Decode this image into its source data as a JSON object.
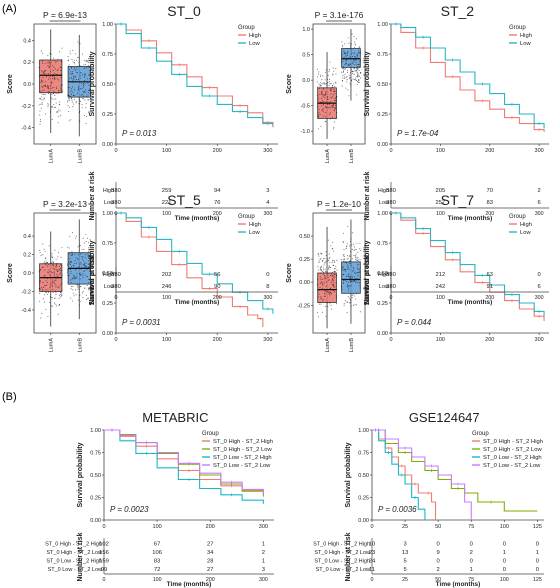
{
  "panel_labels": [
    "(A)",
    "(B)"
  ],
  "colors": {
    "high": "#f07c72",
    "low": "#2bb6c4",
    "box_lumA": "#e8736b",
    "box_lumB": "#5b9bd5",
    "st0h_st2h": "#f07c72",
    "st0h_st2l": "#7fae00",
    "st0l_st2h": "#19b9c9",
    "st0l_st2l": "#c77cff"
  },
  "chart_data": [
    {
      "type": "box",
      "id": "box_st0",
      "pvalue": "P = 6.9e-13",
      "ylabel": "Score",
      "categories": [
        "LumA",
        "LumB"
      ],
      "ylim": [
        -0.55,
        0.55
      ],
      "yticks": [
        -0.4,
        -0.2,
        0.0,
        0.2,
        0.4
      ],
      "ytick_labels": [
        "-0.4",
        "-0.2",
        "0.0",
        "0.2",
        "0.4"
      ],
      "boxes": [
        {
          "q1": -0.08,
          "median": 0.08,
          "q3": 0.22,
          "lo": -0.45,
          "hi": 0.5
        },
        {
          "q1": -0.12,
          "median": 0.02,
          "q3": 0.16,
          "lo": -0.48,
          "hi": 0.45
        }
      ]
    },
    {
      "type": "line",
      "id": "km_st0",
      "title": "ST_0",
      "ylabel": "Survival probability",
      "xlabel": "Time (months)",
      "legend_title": "Group",
      "pvalue": "P = 0.013",
      "xlim": [
        0,
        320
      ],
      "ylim": [
        0,
        1
      ],
      "xticks": [
        0,
        100,
        200,
        300
      ],
      "yticks": [
        0,
        0.25,
        0.5,
        0.75,
        1.0
      ],
      "ytick_labels": [
        "0.00",
        "0.25",
        "0.50",
        "0.75",
        "1.00"
      ],
      "series": [
        {
          "name": "High",
          "x": [
            0,
            20,
            50,
            80,
            110,
            140,
            170,
            200,
            230,
            260,
            290,
            310
          ],
          "y": [
            1.0,
            0.95,
            0.86,
            0.76,
            0.66,
            0.56,
            0.47,
            0.4,
            0.32,
            0.26,
            0.18,
            0.14
          ]
        },
        {
          "name": "Low",
          "x": [
            0,
            20,
            50,
            80,
            110,
            140,
            170,
            200,
            230,
            260,
            290,
            310
          ],
          "y": [
            1.0,
            0.92,
            0.8,
            0.69,
            0.58,
            0.48,
            0.4,
            0.33,
            0.27,
            0.22,
            0.17,
            0.15
          ]
        }
      ],
      "risk_table": {
        "label": "Number at risk",
        "rows": [
          {
            "name": "High",
            "values": [
              "380",
              "259",
              "94",
              "3"
            ]
          },
          {
            "name": "Low",
            "values": [
              "380",
              "221",
              "76",
              "4"
            ]
          }
        ]
      }
    },
    {
      "type": "box",
      "id": "box_st2",
      "pvalue": "P = 3.1e-176",
      "ylabel": "Score",
      "categories": [
        "LumA",
        "LumB"
      ],
      "ylim": [
        -1.25,
        1.1
      ],
      "yticks": [
        -1.0,
        -0.5,
        0.0,
        0.5,
        1.0
      ],
      "ytick_labels": [
        "-1.0",
        "-0.5",
        "0.0",
        "0.5",
        "1.0"
      ],
      "boxes": [
        {
          "q1": -0.75,
          "median": -0.45,
          "q3": -0.15,
          "lo": -1.15,
          "hi": 0.55
        },
        {
          "q1": 0.25,
          "median": 0.42,
          "q3": 0.62,
          "lo": -0.4,
          "hi": 1.0
        }
      ]
    },
    {
      "type": "line",
      "id": "km_st2",
      "title": "ST_2",
      "ylabel": "Survival probability",
      "xlabel": "Time (months)",
      "legend_title": "Group",
      "pvalue": "P = 1.7e-04",
      "xlim": [
        0,
        320
      ],
      "ylim": [
        0,
        1
      ],
      "xticks": [
        0,
        100,
        200,
        300
      ],
      "yticks": [
        0,
        0.25,
        0.5,
        0.75,
        1.0
      ],
      "ytick_labels": [
        "0.00",
        "0.25",
        "0.50",
        "0.75",
        "1.00"
      ],
      "series": [
        {
          "name": "High",
          "x": [
            0,
            20,
            50,
            80,
            110,
            140,
            170,
            200,
            230,
            260,
            290,
            310
          ],
          "y": [
            1.0,
            0.93,
            0.8,
            0.68,
            0.56,
            0.45,
            0.36,
            0.29,
            0.22,
            0.17,
            0.12,
            0.1
          ]
        },
        {
          "name": "Low",
          "x": [
            0,
            20,
            50,
            80,
            110,
            140,
            170,
            200,
            230,
            260,
            290,
            310
          ],
          "y": [
            1.0,
            0.97,
            0.89,
            0.8,
            0.7,
            0.6,
            0.5,
            0.42,
            0.33,
            0.25,
            0.17,
            0.13
          ]
        }
      ],
      "risk_table": {
        "label": "Number at risk",
        "rows": [
          {
            "name": "High",
            "values": [
              "380",
              "205",
              "70",
              "2"
            ]
          },
          {
            "name": "Low",
            "values": [
              "380",
              "257",
              "83",
              "6"
            ]
          }
        ]
      }
    },
    {
      "type": "box",
      "id": "box_st5",
      "pvalue": "P = 3.2e-13",
      "ylabel": "Score",
      "categories": [
        "LumA",
        "LumB"
      ],
      "ylim": [
        -0.65,
        0.65
      ],
      "yticks": [
        -0.4,
        -0.2,
        0.0,
        0.2,
        0.4
      ],
      "ytick_labels": [
        "-0.4",
        "-0.2",
        "0.0",
        "0.2",
        "0.4"
      ],
      "boxes": [
        {
          "q1": -0.2,
          "median": -0.05,
          "q3": 0.1,
          "lo": -0.58,
          "hi": 0.45
        },
        {
          "q1": -0.12,
          "median": 0.05,
          "q3": 0.22,
          "lo": -0.5,
          "hi": 0.58
        }
      ]
    },
    {
      "type": "line",
      "id": "km_st5",
      "title": "ST_5",
      "ylabel": "Survival probability",
      "xlabel": "Time (months)",
      "legend_title": "Group",
      "pvalue": "P = 0.0031",
      "xlim": [
        0,
        320
      ],
      "ylim": [
        0,
        1
      ],
      "xticks": [
        0,
        100,
        200,
        300
      ],
      "yticks": [
        0,
        0.25,
        0.5,
        0.75,
        1.0
      ],
      "ytick_labels": [
        "0.00",
        "0.25",
        "0.50",
        "0.75",
        "1.00"
      ],
      "series": [
        {
          "name": "High",
          "x": [
            0,
            20,
            50,
            80,
            110,
            140,
            170,
            200,
            230,
            260,
            280,
            290
          ],
          "y": [
            1.0,
            0.93,
            0.8,
            0.68,
            0.57,
            0.46,
            0.37,
            0.3,
            0.22,
            0.15,
            0.12,
            0.05
          ]
        },
        {
          "name": "Low",
          "x": [
            0,
            20,
            50,
            80,
            110,
            140,
            170,
            200,
            230,
            260,
            290,
            310
          ],
          "y": [
            1.0,
            0.96,
            0.88,
            0.78,
            0.68,
            0.58,
            0.49,
            0.41,
            0.34,
            0.27,
            0.2,
            0.16
          ]
        }
      ],
      "risk_table": {
        "label": "Number at risk",
        "rows": [
          {
            "name": "High",
            "values": [
              "380",
              "202",
              "56",
              "0"
            ]
          },
          {
            "name": "Low",
            "values": [
              "380",
              "246",
              "90",
              "8"
            ]
          }
        ]
      }
    },
    {
      "type": "box",
      "id": "box_st7",
      "pvalue": "P = 1.2e-10",
      "ylabel": "Score",
      "categories": [
        "LumA",
        "LumB"
      ],
      "ylim": [
        -0.55,
        0.75
      ],
      "yticks": [
        -0.25,
        0.0,
        0.25,
        0.5
      ],
      "ytick_labels": [
        "-0.25",
        "0.00",
        "0.25",
        "0.50"
      ],
      "boxes": [
        {
          "q1": -0.22,
          "median": -0.08,
          "q3": 0.1,
          "lo": -0.5,
          "hi": 0.6
        },
        {
          "q1": -0.12,
          "median": 0.03,
          "q3": 0.22,
          "lo": -0.45,
          "hi": 0.68
        }
      ]
    },
    {
      "type": "line",
      "id": "km_st7",
      "title": "ST_7",
      "ylabel": "Survival probability",
      "xlabel": "Time (months)",
      "legend_title": "Group",
      "pvalue": "P = 0.044",
      "xlim": [
        0,
        320
      ],
      "ylim": [
        0,
        1
      ],
      "xticks": [
        0,
        100,
        200,
        300
      ],
      "yticks": [
        0,
        0.25,
        0.5,
        0.75,
        1.0
      ],
      "ytick_labels": [
        "0.00",
        "0.25",
        "0.50",
        "0.75",
        "1.00"
      ],
      "series": [
        {
          "name": "High",
          "x": [
            0,
            20,
            50,
            80,
            110,
            140,
            170,
            200,
            230,
            260,
            290,
            310
          ],
          "y": [
            1.0,
            0.94,
            0.83,
            0.72,
            0.61,
            0.51,
            0.42,
            0.34,
            0.27,
            0.2,
            0.14,
            0.1
          ]
        },
        {
          "name": "Low",
          "x": [
            0,
            20,
            50,
            80,
            110,
            140,
            170,
            200,
            230,
            260,
            290,
            310
          ],
          "y": [
            1.0,
            0.96,
            0.87,
            0.77,
            0.67,
            0.57,
            0.48,
            0.4,
            0.32,
            0.25,
            0.18,
            0.14
          ]
        }
      ],
      "risk_table": {
        "label": "Number at risk",
        "rows": [
          {
            "name": "High",
            "values": [
              "380",
              "212",
              "63",
              "0"
            ]
          },
          {
            "name": "Low",
            "values": [
              "380",
              "242",
              "91",
              "6"
            ]
          }
        ]
      }
    },
    {
      "type": "line",
      "id": "km_metabric",
      "title": "METABRIC",
      "ylabel": "Survival probability",
      "xlabel": "Time (months)",
      "legend_title": "Group",
      "pvalue": "P = 0.0023",
      "xlim": [
        0,
        320
      ],
      "ylim": [
        0,
        1
      ],
      "xticks": [
        0,
        100,
        200,
        300
      ],
      "yticks": [
        0,
        0.25,
        0.5,
        0.75,
        1.0
      ],
      "ytick_labels": [
        "0.00",
        "0.25",
        "0.50",
        "0.75",
        "1.00"
      ],
      "series": [
        {
          "name": "ST_0 High - ST_2 High",
          "x": [
            0,
            30,
            60,
            100,
            140,
            180,
            220,
            260,
            300
          ],
          "y": [
            1.0,
            0.93,
            0.82,
            0.68,
            0.55,
            0.45,
            0.38,
            0.33,
            0.3
          ]
        },
        {
          "name": "ST_0 High - ST_2 Low",
          "x": [
            0,
            30,
            60,
            100,
            140,
            180,
            220,
            260,
            300
          ],
          "y": [
            1.0,
            0.95,
            0.86,
            0.74,
            0.62,
            0.5,
            0.4,
            0.32,
            0.26
          ]
        },
        {
          "name": "ST_0 Low - ST_2 High",
          "x": [
            0,
            30,
            60,
            100,
            140,
            180,
            220,
            260,
            300
          ],
          "y": [
            1.0,
            0.88,
            0.74,
            0.58,
            0.45,
            0.35,
            0.28,
            0.22,
            0.18
          ]
        },
        {
          "name": "ST_0 Low - ST_2 Low",
          "x": [
            0,
            30,
            60,
            100,
            140,
            180,
            220,
            260,
            300
          ],
          "y": [
            1.0,
            0.94,
            0.86,
            0.75,
            0.63,
            0.52,
            0.42,
            0.34,
            0.28
          ]
        }
      ],
      "risk_table": {
        "label": "Number at risk",
        "rows": [
          {
            "name": "ST_0 High - ST_2 High",
            "values": [
              "102",
              "67",
              "27",
              "1"
            ]
          },
          {
            "name": "ST_0 High - ST_2 Low",
            "values": [
              "156",
              "106",
              "34",
              "2"
            ]
          },
          {
            "name": "ST_0 Low - ST_2 High",
            "values": [
              "159",
              "83",
              "28",
              "1"
            ]
          },
          {
            "name": "ST_0 Low - ST_2 Low",
            "values": [
              "99",
              "72",
              "27",
              "3"
            ]
          }
        ]
      }
    },
    {
      "type": "line",
      "id": "km_gse",
      "title": "GSE124647",
      "ylabel": "Survival probability",
      "xlabel": "Time (months)",
      "legend_title": "Group",
      "pvalue": "P = 0.0036",
      "xlim": [
        0,
        130
      ],
      "ylim": [
        0,
        1
      ],
      "xticks": [
        0,
        25,
        50,
        75,
        100,
        125
      ],
      "yticks": [
        0,
        0.25,
        0.5,
        0.75,
        1.0
      ],
      "ytick_labels": [
        "0.00",
        "0.25",
        "0.50",
        "0.75",
        "1.00"
      ],
      "series": [
        {
          "name": "ST_0 High - ST_2 High",
          "x": [
            0,
            5,
            10,
            15,
            20,
            25,
            30,
            35,
            40,
            45,
            48
          ],
          "y": [
            1.0,
            0.9,
            0.8,
            0.7,
            0.6,
            0.5,
            0.4,
            0.3,
            0.3,
            0.2,
            0.0
          ]
        },
        {
          "name": "ST_0 High - ST_2 Low",
          "x": [
            0,
            10,
            20,
            30,
            40,
            50,
            60,
            70,
            80,
            100,
            125
          ],
          "y": [
            1.0,
            0.85,
            0.75,
            0.65,
            0.55,
            0.45,
            0.35,
            0.3,
            0.2,
            0.1,
            0.1
          ]
        },
        {
          "name": "ST_0 Low - ST_2 High",
          "x": [
            0,
            5,
            10,
            15,
            20,
            25,
            30,
            35,
            40
          ],
          "y": [
            1.0,
            0.88,
            0.75,
            0.62,
            0.5,
            0.4,
            0.25,
            0.12,
            0.0
          ]
        },
        {
          "name": "ST_0 Low - ST_2 Low",
          "x": [
            0,
            10,
            20,
            30,
            40,
            50,
            60,
            70,
            75
          ],
          "y": [
            1.0,
            0.9,
            0.8,
            0.7,
            0.6,
            0.5,
            0.4,
            0.2,
            0.0
          ]
        }
      ],
      "risk_table": {
        "label": "Number at risk",
        "rows": [
          {
            "name": "ST_0 High - ST_2 High",
            "values": [
              "10",
              "3",
              "0",
              "0",
              "0",
              "0"
            ]
          },
          {
            "name": "ST_0 High - ST_2 Low",
            "values": [
              "23",
              "13",
              "9",
              "2",
              "1",
              "1"
            ]
          },
          {
            "name": "ST_0 Low - ST_2 High",
            "values": [
              "24",
              "5",
              "0",
              "0",
              "0",
              "0"
            ]
          },
          {
            "name": "ST_0 Low - ST_2 Low",
            "values": [
              "11",
              "5",
              "2",
              "1",
              "0",
              "0"
            ]
          }
        ]
      }
    }
  ]
}
